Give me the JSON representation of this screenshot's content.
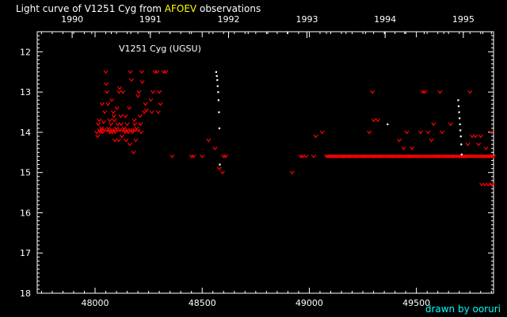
{
  "title_prefix": "Light curve of V1251 Cyg from ",
  "title_highlight": "AFOEV",
  "title_suffix": " observations",
  "credit": "drawn by ooruri",
  "colors": {
    "background": "#000000",
    "axes": "#ffffff",
    "text": "#ffffff",
    "highlight": "#ffff00",
    "credit": "#00ffff",
    "visual_obs": "#ff0000",
    "positive_obs": "#ffffff"
  },
  "chart_data": {
    "type": "scatter",
    "annotation": "V1251 Cyg (UGSU)",
    "x_range": [
      47730,
      49860
    ],
    "y_range": [
      11.5,
      18
    ],
    "y_inverted": true,
    "x_ticks": [
      "48000",
      "48500",
      "49000",
      "49500"
    ],
    "y_ticks": [
      "12",
      "13",
      "14",
      "15",
      "16",
      "17",
      "18"
    ],
    "year_ticks": [
      "1990",
      "1991",
      "1992",
      "1993",
      "1994",
      "1995"
    ],
    "series": [
      {
        "marker": "v",
        "color": "#ff0000",
        "points": [
          [
            48008,
            14.0
          ],
          [
            48012,
            14.1
          ],
          [
            48015,
            13.8
          ],
          [
            48020,
            13.7
          ],
          [
            48025,
            14.0
          ],
          [
            48030,
            13.9
          ],
          [
            48033,
            13.3
          ],
          [
            48035,
            14.0
          ],
          [
            48040,
            13.75
          ],
          [
            48045,
            13.5
          ],
          [
            48050,
            12.5
          ],
          [
            48052,
            12.8
          ],
          [
            48055,
            13.0
          ],
          [
            48060,
            13.3
          ],
          [
            48063,
            13.9
          ],
          [
            48068,
            13.7
          ],
          [
            48070,
            14.0
          ],
          [
            48075,
            13.8
          ],
          [
            48078,
            13.2
          ],
          [
            48080,
            14.0
          ],
          [
            48085,
            13.5
          ],
          [
            48088,
            13.6
          ],
          [
            48090,
            13.7
          ],
          [
            48092,
            14.2
          ],
          [
            48095,
            14.0
          ],
          [
            48100,
            13.9
          ],
          [
            48102,
            13.4
          ],
          [
            48105,
            13.8
          ],
          [
            48110,
            14.2
          ],
          [
            48112,
            13.0
          ],
          [
            48115,
            12.9
          ],
          [
            48120,
            13.6
          ],
          [
            48122,
            13.8
          ],
          [
            48125,
            14.1
          ],
          [
            48130,
            13.0
          ],
          [
            48135,
            13.9
          ],
          [
            48140,
            14.0
          ],
          [
            48142,
            13.6
          ],
          [
            48145,
            14.2
          ],
          [
            48150,
            13.8
          ],
          [
            48155,
            14.0
          ],
          [
            48160,
            13.4
          ],
          [
            48162,
            14.3
          ],
          [
            48165,
            12.5
          ],
          [
            48170,
            12.7
          ],
          [
            48175,
            14.0
          ],
          [
            48180,
            14.5
          ],
          [
            48183,
            13.7
          ],
          [
            48185,
            13.8
          ],
          [
            48190,
            14.2
          ],
          [
            48195,
            13.9
          ],
          [
            48200,
            13.1
          ],
          [
            48205,
            13.0
          ],
          [
            48210,
            13.6
          ],
          [
            48212,
            13.8
          ],
          [
            48215,
            14.0
          ],
          [
            48218,
            12.5
          ],
          [
            48220,
            12.75
          ],
          [
            48230,
            13.5
          ],
          [
            48235,
            13.3
          ],
          [
            48240,
            13.45
          ],
          [
            48260,
            13.2
          ],
          [
            48265,
            13.5
          ],
          [
            48270,
            13.0
          ],
          [
            48280,
            12.5
          ],
          [
            48290,
            12.5
          ],
          [
            48295,
            13.5
          ],
          [
            48300,
            13.0
          ],
          [
            48305,
            13.3
          ],
          [
            48320,
            12.5
          ],
          [
            48330,
            12.5
          ],
          [
            48360,
            14.6
          ],
          [
            48450,
            14.6
          ],
          [
            48460,
            14.6
          ],
          [
            48500,
            14.6
          ],
          [
            48530,
            14.2
          ],
          [
            48560,
            14.4
          ],
          [
            48580,
            14.9
          ],
          [
            48595,
            15.0
          ],
          [
            48600,
            14.6
          ],
          [
            48610,
            14.6
          ],
          [
            48920,
            15.0
          ],
          [
            48960,
            14.6
          ],
          [
            48970,
            14.6
          ],
          [
            48985,
            14.6
          ],
          [
            49020,
            14.6
          ],
          [
            49030,
            14.1
          ],
          [
            49060,
            14.0
          ],
          [
            49100,
            14.6
          ],
          [
            49130,
            14.6
          ],
          [
            49160,
            14.6
          ],
          [
            49190,
            14.6
          ],
          [
            49220,
            14.6
          ],
          [
            49250,
            14.6
          ],
          [
            49280,
            14.0
          ],
          [
            49300,
            14.6
          ],
          [
            49330,
            14.6
          ],
          [
            49295,
            13.0
          ],
          [
            49300,
            13.7
          ],
          [
            49320,
            13.7
          ],
          [
            49375,
            14.6
          ],
          [
            49390,
            14.6
          ],
          [
            49410,
            14.6
          ],
          [
            49420,
            14.2
          ],
          [
            49440,
            14.4
          ],
          [
            49455,
            14.0
          ],
          [
            49470,
            14.6
          ],
          [
            49480,
            14.4
          ],
          [
            49500,
            14.6
          ],
          [
            49520,
            14.0
          ],
          [
            49530,
            13.0
          ],
          [
            49540,
            13.0
          ],
          [
            49555,
            14.0
          ],
          [
            49570,
            14.2
          ],
          [
            49580,
            13.8
          ],
          [
            49600,
            14.6
          ],
          [
            49610,
            13.0
          ],
          [
            49620,
            14.0
          ],
          [
            49640,
            14.6
          ],
          [
            49660,
            13.8
          ],
          [
            49670,
            14.6
          ],
          [
            49700,
            14.6
          ],
          [
            49720,
            14.6
          ],
          [
            49740,
            14.3
          ],
          [
            49750,
            13.0
          ],
          [
            49760,
            14.1
          ],
          [
            49775,
            14.1
          ],
          [
            49790,
            14.3
          ],
          [
            49800,
            14.1
          ],
          [
            49810,
            14.6
          ],
          [
            49825,
            14.4
          ],
          [
            49840,
            14.6
          ],
          [
            49850,
            14.0
          ],
          [
            49860,
            14.6
          ],
          [
            49805,
            15.3
          ],
          [
            49820,
            15.3
          ],
          [
            49835,
            15.3
          ],
          [
            49850,
            15.3
          ],
          [
            49855,
            15.3
          ]
        ],
        "runs": [
          {
            "x_start": 49080,
            "x_end": 49860,
            "y": 14.6,
            "step": 7
          },
          {
            "x_start": 48020,
            "x_end": 48200,
            "y": 13.95,
            "step": 12
          }
        ]
      },
      {
        "marker": "dot",
        "color": "#ffffff",
        "points": [
          [
            48565,
            12.5
          ],
          [
            48568,
            12.6
          ],
          [
            48570,
            12.7
          ],
          [
            48572,
            12.85
          ],
          [
            48574,
            13.0
          ],
          [
            48576,
            13.2
          ],
          [
            48578,
            13.5
          ],
          [
            48580,
            13.9
          ],
          [
            48582,
            14.8
          ],
          [
            49365,
            13.8
          ],
          [
            49695,
            13.2
          ],
          [
            49697,
            13.35
          ],
          [
            49699,
            13.5
          ],
          [
            49701,
            13.65
          ],
          [
            49703,
            13.8
          ],
          [
            49705,
            13.95
          ],
          [
            49707,
            14.1
          ],
          [
            49709,
            14.3
          ],
          [
            49711,
            14.55
          ]
        ]
      }
    ]
  }
}
